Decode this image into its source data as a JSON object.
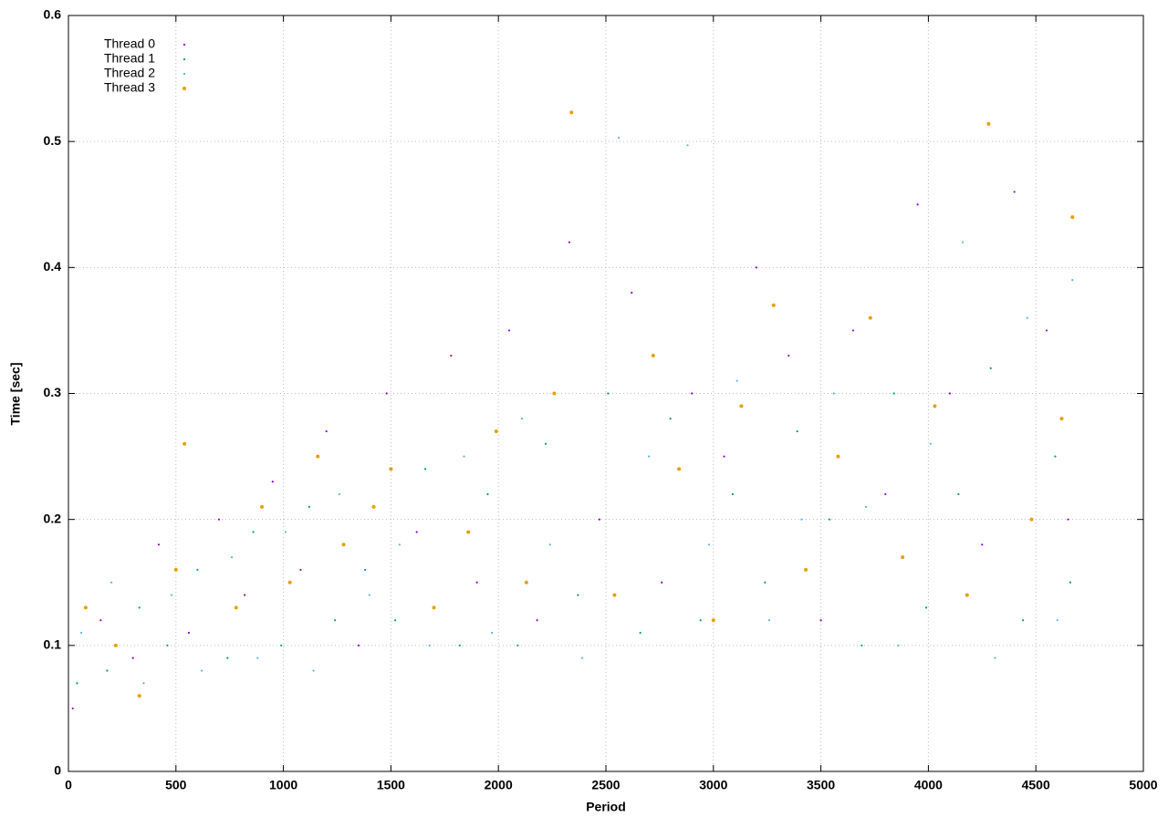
{
  "chart_data": {
    "type": "scatter",
    "xlabel": "Period",
    "ylabel": "Time [sec]",
    "xlim": [
      0,
      5000
    ],
    "xticks": [
      0,
      500,
      1000,
      1500,
      2000,
      2500,
      3000,
      3500,
      4000,
      4500,
      5000
    ],
    "ylim": [
      0,
      0.6
    ],
    "yticks": [
      0,
      0.1,
      0.2,
      0.3,
      0.4,
      0.5,
      0.6
    ],
    "grid": true,
    "legend": "upper left",
    "series": [
      {
        "name": "Thread 0",
        "color": "#9400d3",
        "x": [
          20,
          150,
          300,
          420,
          560,
          700,
          820,
          950,
          1080,
          1200,
          1350,
          1480,
          1620,
          1780,
          1900,
          2050,
          2180,
          2330,
          2470,
          2620,
          2760,
          2900,
          3050,
          3200,
          3350,
          3500,
          3650,
          3800,
          3950,
          4100,
          4250,
          4400,
          4550,
          4650
        ],
        "values": [
          0.05,
          0.12,
          0.09,
          0.18,
          0.11,
          0.2,
          0.14,
          0.23,
          0.16,
          0.27,
          0.1,
          0.3,
          0.19,
          0.33,
          0.15,
          0.35,
          0.12,
          0.42,
          0.2,
          0.38,
          0.15,
          0.3,
          0.25,
          0.4,
          0.33,
          0.12,
          0.35,
          0.22,
          0.45,
          0.3,
          0.18,
          0.46,
          0.35,
          0.2
        ]
      },
      {
        "name": "Thread 1",
        "color": "#009e73",
        "x": [
          40,
          180,
          330,
          460,
          600,
          740,
          860,
          990,
          1120,
          1240,
          1380,
          1520,
          1660,
          1820,
          1950,
          2090,
          2220,
          2370,
          2510,
          2660,
          2800,
          2940,
          3090,
          3240,
          3390,
          3540,
          3690,
          3840,
          3990,
          4140,
          4290,
          4440,
          4590,
          4660
        ],
        "values": [
          0.07,
          0.08,
          0.13,
          0.1,
          0.16,
          0.09,
          0.19,
          0.1,
          0.21,
          0.12,
          0.16,
          0.12,
          0.24,
          0.1,
          0.22,
          0.1,
          0.26,
          0.14,
          0.3,
          0.11,
          0.28,
          0.12,
          0.22,
          0.15,
          0.27,
          0.2,
          0.1,
          0.3,
          0.13,
          0.22,
          0.32,
          0.12,
          0.25,
          0.15
        ]
      },
      {
        "name": "Thread 2",
        "color": "#56b4e9",
        "x": [
          60,
          200,
          350,
          480,
          620,
          760,
          880,
          1010,
          1140,
          1260,
          1400,
          1540,
          1680,
          1840,
          1970,
          2110,
          2240,
          2390,
          2560,
          2700,
          2880,
          2980,
          3110,
          3260,
          3410,
          3560,
          3710,
          3860,
          4010,
          4160,
          4310,
          4460,
          4600,
          4670
        ],
        "values": [
          0.11,
          0.15,
          0.07,
          0.14,
          0.08,
          0.17,
          0.09,
          0.19,
          0.08,
          0.22,
          0.14,
          0.18,
          0.1,
          0.25,
          0.11,
          0.28,
          0.18,
          0.09,
          0.503,
          0.25,
          0.497,
          0.18,
          0.31,
          0.12,
          0.2,
          0.3,
          0.21,
          0.1,
          0.26,
          0.42,
          0.09,
          0.36,
          0.12,
          0.39
        ]
      },
      {
        "name": "Thread 3",
        "color": "#e69f00",
        "x": [
          80,
          220,
          330,
          500,
          540,
          780,
          900,
          1030,
          1160,
          1280,
          1420,
          1500,
          1700,
          1860,
          1990,
          2130,
          2260,
          2340,
          2540,
          2720,
          2840,
          3000,
          3130,
          3280,
          3430,
          3580,
          3730,
          3880,
          4030,
          4180,
          4280,
          4480,
          4620,
          4670
        ],
        "values": [
          0.13,
          0.1,
          0.06,
          0.16,
          0.26,
          0.13,
          0.21,
          0.15,
          0.25,
          0.18,
          0.21,
          0.24,
          0.13,
          0.19,
          0.27,
          0.15,
          0.3,
          0.523,
          0.14,
          0.33,
          0.24,
          0.12,
          0.29,
          0.37,
          0.16,
          0.25,
          0.36,
          0.17,
          0.29,
          0.14,
          0.514,
          0.2,
          0.28,
          0.44
        ]
      }
    ]
  }
}
